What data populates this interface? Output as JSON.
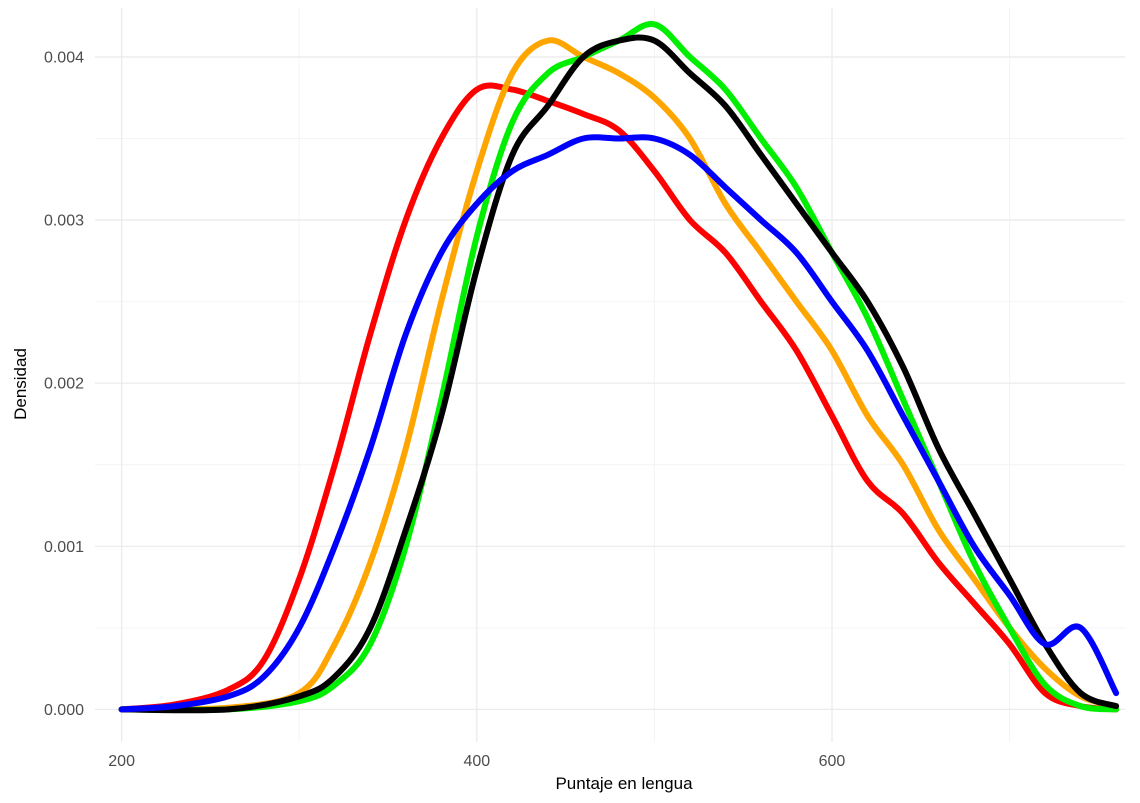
{
  "chart_data": {
    "type": "line",
    "title": "",
    "xlabel": "Puntaje en lengua",
    "ylabel": "Densidad",
    "xlim": [
      185,
      765
    ],
    "ylim": [
      -0.0002,
      0.0043
    ],
    "x_ticks": [
      200,
      400,
      600
    ],
    "x_tick_labels": [
      "200",
      "400",
      "600"
    ],
    "y_ticks": [
      0,
      0.001,
      0.002,
      0.003,
      0.004
    ],
    "y_tick_labels": [
      "0.000",
      "0.001",
      "0.002",
      "0.003",
      "0.004"
    ],
    "grid": true,
    "legend": "none",
    "series": [
      {
        "color": "#ff0000",
        "x": [
          200,
          230,
          260,
          280,
          300,
          320,
          340,
          360,
          380,
          400,
          420,
          440,
          460,
          480,
          500,
          520,
          540,
          560,
          580,
          600,
          620,
          640,
          660,
          680,
          700,
          720,
          740,
          760
        ],
        "y": [
          0,
          3e-05,
          0.00012,
          0.0003,
          0.0008,
          0.0015,
          0.0023,
          0.003,
          0.0035,
          0.0038,
          0.0038,
          0.00373,
          0.00365,
          0.00355,
          0.0033,
          0.003,
          0.0028,
          0.0025,
          0.0022,
          0.0018,
          0.0014,
          0.0012,
          0.0009,
          0.00065,
          0.0004,
          0.0001,
          2e-05,
          0
        ]
      },
      {
        "color": "#ffa500",
        "x": [
          200,
          260,
          300,
          320,
          340,
          360,
          380,
          400,
          420,
          440,
          460,
          480,
          500,
          520,
          540,
          560,
          580,
          600,
          620,
          640,
          660,
          680,
          700,
          720,
          740,
          760
        ],
        "y": [
          0,
          1e-05,
          0.0001,
          0.0004,
          0.0009,
          0.0016,
          0.0025,
          0.0033,
          0.0039,
          0.0041,
          0.004,
          0.0039,
          0.00375,
          0.0035,
          0.0031,
          0.0028,
          0.0025,
          0.0022,
          0.0018,
          0.0015,
          0.0011,
          0.0008,
          0.0005,
          0.00025,
          8e-05,
          2e-05
        ]
      },
      {
        "color": "#00ee00",
        "x": [
          200,
          260,
          300,
          320,
          340,
          360,
          380,
          400,
          420,
          440,
          460,
          480,
          500,
          520,
          540,
          560,
          580,
          600,
          620,
          640,
          660,
          680,
          700,
          720,
          740,
          760
        ],
        "y": [
          0,
          0,
          5e-05,
          0.00015,
          0.0004,
          0.001,
          0.0019,
          0.0029,
          0.0036,
          0.0039,
          0.004,
          0.0041,
          0.0042,
          0.004,
          0.0038,
          0.0035,
          0.0032,
          0.0028,
          0.0024,
          0.0019,
          0.0014,
          0.0009,
          0.0005,
          0.00015,
          2e-05,
          0
        ]
      },
      {
        "color": "#000000",
        "x": [
          200,
          260,
          300,
          320,
          340,
          360,
          380,
          400,
          420,
          440,
          460,
          480,
          500,
          520,
          540,
          560,
          580,
          600,
          620,
          640,
          660,
          680,
          700,
          720,
          740,
          760
        ],
        "y": [
          0,
          0,
          8e-05,
          0.0002,
          0.0005,
          0.0011,
          0.0018,
          0.0027,
          0.0034,
          0.0037,
          0.004,
          0.0041,
          0.0041,
          0.0039,
          0.0037,
          0.0034,
          0.0031,
          0.0028,
          0.0025,
          0.0021,
          0.0016,
          0.0012,
          0.0008,
          0.0004,
          0.0001,
          2e-05
        ]
      },
      {
        "color": "#0000ff",
        "x": [
          200,
          230,
          260,
          280,
          300,
          320,
          340,
          360,
          380,
          400,
          420,
          440,
          460,
          480,
          500,
          520,
          540,
          560,
          580,
          600,
          620,
          640,
          660,
          680,
          700,
          720,
          740,
          760
        ],
        "y": [
          0,
          2e-05,
          8e-05,
          0.0002,
          0.0005,
          0.001,
          0.0016,
          0.0023,
          0.0028,
          0.0031,
          0.0033,
          0.0034,
          0.0035,
          0.0035,
          0.0035,
          0.0034,
          0.0032,
          0.003,
          0.0028,
          0.0025,
          0.0022,
          0.0018,
          0.0014,
          0.001,
          0.0007,
          0.0004,
          0.0005,
          0.0001
        ]
      }
    ]
  }
}
